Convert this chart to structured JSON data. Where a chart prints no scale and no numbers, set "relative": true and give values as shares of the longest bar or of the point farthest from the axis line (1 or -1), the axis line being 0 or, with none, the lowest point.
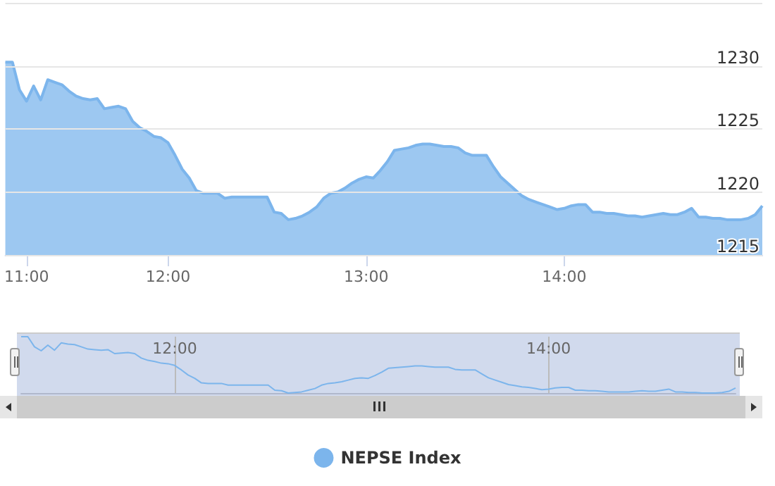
{
  "chart_data": [
    {
      "type": "area",
      "categories": [
        null,
        null,
        null,
        "11:00",
        null,
        null,
        null,
        null,
        null,
        null,
        null,
        null,
        null,
        null,
        null,
        null,
        null,
        null,
        null,
        null,
        null,
        null,
        null,
        "12:00",
        null,
        null,
        null,
        null,
        null,
        null,
        null,
        null,
        null,
        null,
        null,
        null,
        null,
        null,
        null,
        null,
        null,
        null,
        null,
        null,
        null,
        null,
        null,
        null,
        null,
        null,
        null,
        "13:00",
        null,
        null,
        null,
        null,
        null,
        null,
        null,
        null,
        null,
        null,
        null,
        null,
        null,
        null,
        null,
        null,
        null,
        null,
        null,
        null,
        null,
        null,
        null,
        null,
        null,
        null,
        null,
        "14:00",
        null,
        null,
        null,
        null,
        null,
        null,
        null,
        null,
        null,
        null,
        null,
        null,
        null,
        null,
        null,
        null,
        null,
        null,
        null,
        null,
        null,
        null,
        null,
        null,
        null,
        null,
        null,
        null
      ],
      "series": [
        {
          "name": "NEPSE Index",
          "color": "#7cb5ec",
          "values": [
            1230.3,
            1230.3,
            1228.1,
            1227.2,
            1228.4,
            1227.3,
            1228.9,
            1228.7,
            1228.5,
            1228.0,
            1227.6,
            1227.4,
            1227.3,
            1227.4,
            1226.6,
            1226.7,
            1226.8,
            1226.6,
            1225.6,
            1225.1,
            1224.8,
            1224.4,
            1224.3,
            1223.9,
            1222.9,
            1221.8,
            1221.1,
            1220.1,
            1219.9,
            1219.9,
            1219.9,
            1219.5,
            1219.6,
            1219.6,
            1219.6,
            1219.6,
            1219.6,
            1219.6,
            1218.4,
            1218.3,
            1217.8,
            1217.9,
            1218.1,
            1218.4,
            1218.8,
            1219.5,
            1219.9,
            1220.0,
            1220.3,
            1220.7,
            1221.0,
            1221.2,
            1221.1,
            1221.7,
            1222.4,
            1223.3,
            1223.4,
            1223.5,
            1223.7,
            1223.8,
            1223.8,
            1223.7,
            1223.6,
            1223.6,
            1223.5,
            1223.1,
            1222.9,
            1222.9,
            1222.9,
            1222.0,
            1221.2,
            1220.7,
            1220.2,
            1219.7,
            1219.4,
            1219.2,
            1219.0,
            1218.8,
            1218.6,
            1218.7,
            1218.9,
            1219.0,
            1219.0,
            1218.4,
            1218.4,
            1218.3,
            1218.3,
            1218.2,
            1218.1,
            1218.1,
            1218.0,
            1218.1,
            1218.2,
            1218.3,
            1218.2,
            1218.2,
            1218.4,
            1218.7,
            1218.0,
            1218.0,
            1217.9,
            1217.9,
            1217.8,
            1217.8,
            1217.8,
            1217.9,
            1218.2,
            1218.9
          ]
        }
      ],
      "ylim": [
        1215,
        1235
      ],
      "yticks": [
        1215,
        1220,
        1225,
        1230,
        {
          "value": 1235,
          "label": null
        }
      ],
      "grid": "y",
      "legend": "bottom",
      "marker": "none"
    },
    {
      "type": "line",
      "relative": true,
      "tick_labels": "x",
      "grid": "x",
      "marker": "none",
      "categories": [
        null,
        null,
        null,
        null,
        null,
        null,
        null,
        null,
        null,
        null,
        null,
        null,
        null,
        null,
        null,
        null,
        null,
        null,
        null,
        null,
        null,
        null,
        null,
        "12:00",
        null,
        null,
        null,
        null,
        null,
        null,
        null,
        null,
        null,
        null,
        null,
        null,
        null,
        null,
        null,
        null,
        null,
        null,
        null,
        null,
        null,
        null,
        null,
        null,
        null,
        null,
        null,
        null,
        null,
        null,
        null,
        null,
        null,
        null,
        null,
        null,
        null,
        null,
        null,
        null,
        null,
        null,
        null,
        null,
        null,
        null,
        null,
        null,
        null,
        null,
        null,
        null,
        null,
        null,
        null,
        "14:00",
        null,
        null,
        null,
        null,
        null,
        null,
        null,
        null,
        null,
        null,
        null,
        null,
        null,
        null,
        null,
        null,
        null,
        null,
        null,
        null,
        null,
        null,
        null,
        null,
        null,
        null,
        null,
        null
      ],
      "series": [
        {
          "color": "#7cb5ec",
          "values": [
            1.0,
            1.0,
            0.82,
            0.75,
            0.85,
            0.76,
            0.89,
            0.87,
            0.86,
            0.82,
            0.78,
            0.77,
            0.76,
            0.77,
            0.7,
            0.71,
            0.72,
            0.7,
            0.62,
            0.58,
            0.56,
            0.53,
            0.52,
            0.49,
            0.41,
            0.32,
            0.26,
            0.18,
            0.17,
            0.17,
            0.17,
            0.14,
            0.14,
            0.14,
            0.14,
            0.14,
            0.14,
            0.14,
            0.05,
            0.04,
            0,
            0.01,
            0.02,
            0.05,
            0.08,
            0.14,
            0.17,
            0.18,
            0.2,
            0.23,
            0.26,
            0.27,
            0.26,
            0.31,
            0.37,
            0.44,
            0.45,
            0.46,
            0.47,
            0.48,
            0.48,
            0.47,
            0.46,
            0.46,
            0.46,
            0.42,
            0.41,
            0.41,
            0.41,
            0.34,
            0.27,
            0.23,
            0.19,
            0.15,
            0.13,
            0.11,
            0.1,
            0.08,
            0.06,
            0.07,
            0.09,
            0.1,
            0.1,
            0.05,
            0.05,
            0.04,
            0.04,
            0.03,
            0.02,
            0.02,
            0.02,
            0.02,
            0.03,
            0.04,
            0.03,
            0.03,
            0.05,
            0.07,
            0.02,
            0.02,
            0.01,
            0.01,
            0,
            0,
            0,
            0.01,
            0.03,
            0.09
          ]
        }
      ]
    }
  ]
}
